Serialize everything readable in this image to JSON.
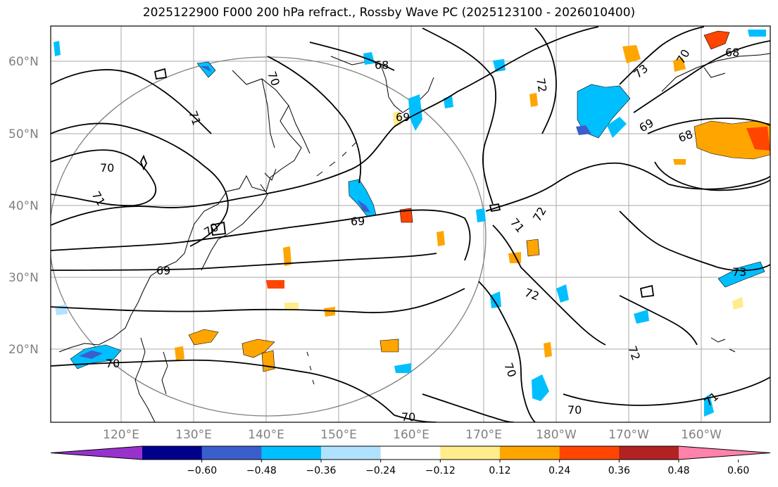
{
  "title": "2025122900 F000 200 hPa refract., Rossby Wave PC (2025123100 - 2026010400)",
  "lat_labels": [
    "60°N",
    "50°N",
    "40°N",
    "30°N",
    "20°N"
  ],
  "lon_labels": [
    "120°E",
    "130°E",
    "140°E",
    "150°E",
    "160°E",
    "170°E",
    "180°W",
    "170°W",
    "160°W"
  ],
  "contour_labels": [
    "70",
    "68",
    "69",
    "72",
    "71",
    "73",
    "70",
    "68",
    "69",
    "68",
    "70",
    "71",
    "70",
    "69",
    "71",
    "72",
    "69",
    "73",
    "72",
    "70",
    "72",
    "70",
    "70",
    "70",
    "71"
  ],
  "colorbar": {
    "tick_labels": [
      "−0.60",
      "−0.48",
      "−0.36",
      "−0.24",
      "−0.12",
      "0.12",
      "0.24",
      "0.36",
      "0.48",
      "0.60"
    ],
    "colors": [
      "#9932cc",
      "#00008b",
      "#3a5fcd",
      "#00bfff",
      "#b0e2ff",
      "#ffffff",
      "#ffec8b",
      "#ffa500",
      "#ff4500",
      "#b22222",
      "#ff82ab"
    ]
  }
}
